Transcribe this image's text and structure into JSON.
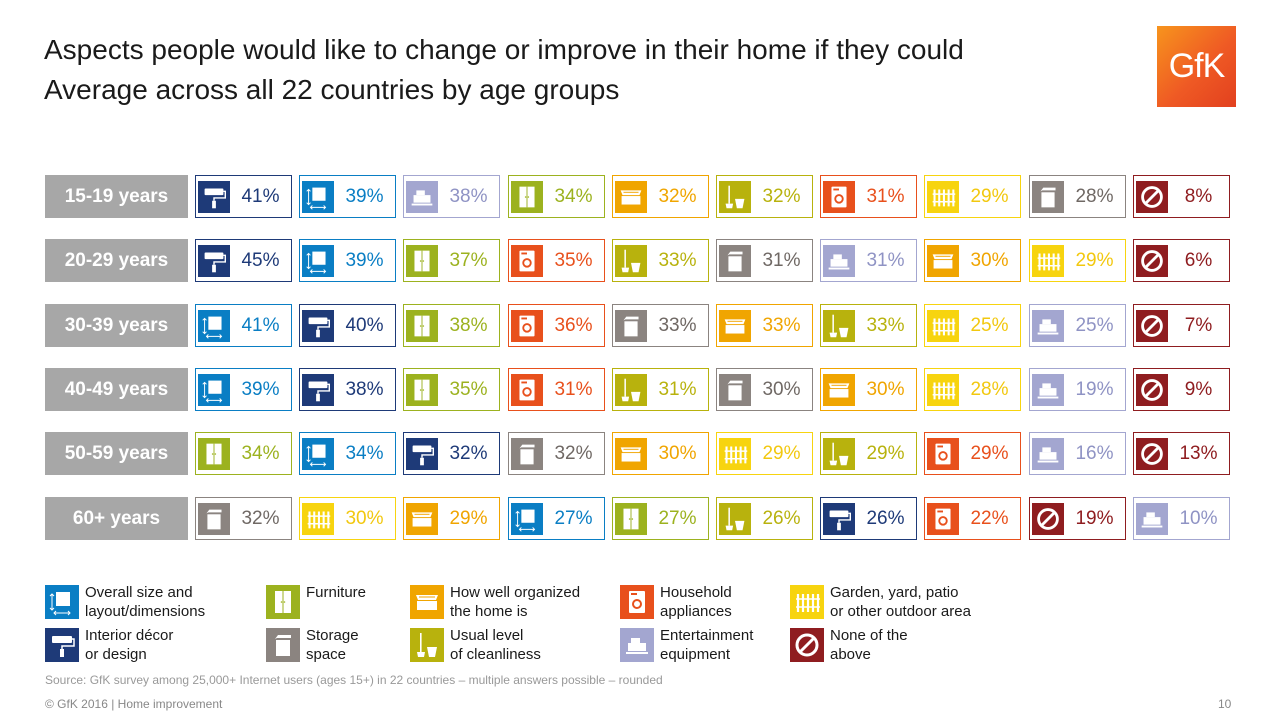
{
  "title_line1": "Aspects people would like to change or improve in their home if they could",
  "title_line2": "Average across all 22 countries by age groups",
  "logo_text": "GfK",
  "categories": {
    "size": {
      "color": "#0a7ec4",
      "icon": "layout-icon"
    },
    "decor": {
      "color": "#1e3a78",
      "icon": "paint-roller-icon"
    },
    "furniture": {
      "color": "#9cb21f",
      "icon": "wardrobe-icon"
    },
    "storage": {
      "color": "#8b8480",
      "icon": "storage-box-icon"
    },
    "organized": {
      "color": "#f0a500",
      "icon": "drawer-icon"
    },
    "cleanliness": {
      "color": "#b8b20d",
      "icon": "broom-bucket-icon"
    },
    "appliances": {
      "color": "#e8501c",
      "icon": "washing-machine-icon"
    },
    "entertainment": {
      "color": "#a3a6d0",
      "icon": "tv-equipment-icon"
    },
    "garden": {
      "color": "#f7d40f",
      "icon": "fence-icon"
    },
    "none": {
      "color": "#8f1d20",
      "icon": "prohibited-icon"
    }
  },
  "chart_data": {
    "type": "table",
    "title": "Aspects people would like to change or improve in their home if they could",
    "subtitle": "Average across all 22 countries by age groups",
    "rows": [
      {
        "age": "15-19 years",
        "cells": [
          {
            "cat": "decor",
            "value": "41%"
          },
          {
            "cat": "size",
            "value": "39%"
          },
          {
            "cat": "entertainment",
            "value": "38%"
          },
          {
            "cat": "furniture",
            "value": "34%"
          },
          {
            "cat": "organized",
            "value": "32%"
          },
          {
            "cat": "cleanliness",
            "value": "32%"
          },
          {
            "cat": "appliances",
            "value": "31%"
          },
          {
            "cat": "garden",
            "value": "29%"
          },
          {
            "cat": "storage",
            "value": "28%"
          },
          {
            "cat": "none",
            "value": "8%"
          }
        ]
      },
      {
        "age": "20-29 years",
        "cells": [
          {
            "cat": "decor",
            "value": "45%"
          },
          {
            "cat": "size",
            "value": "39%"
          },
          {
            "cat": "furniture",
            "value": "37%"
          },
          {
            "cat": "appliances",
            "value": "35%"
          },
          {
            "cat": "cleanliness",
            "value": "33%"
          },
          {
            "cat": "storage",
            "value": "31%"
          },
          {
            "cat": "entertainment",
            "value": "31%"
          },
          {
            "cat": "organized",
            "value": "30%"
          },
          {
            "cat": "garden",
            "value": "29%"
          },
          {
            "cat": "none",
            "value": "6%"
          }
        ]
      },
      {
        "age": "30-39 years",
        "cells": [
          {
            "cat": "size",
            "value": "41%"
          },
          {
            "cat": "decor",
            "value": "40%"
          },
          {
            "cat": "furniture",
            "value": "38%"
          },
          {
            "cat": "appliances",
            "value": "36%"
          },
          {
            "cat": "storage",
            "value": "33%"
          },
          {
            "cat": "organized",
            "value": "33%"
          },
          {
            "cat": "cleanliness",
            "value": "33%"
          },
          {
            "cat": "garden",
            "value": "25%"
          },
          {
            "cat": "entertainment",
            "value": "25%"
          },
          {
            "cat": "none",
            "value": "7%"
          }
        ]
      },
      {
        "age": "40-49 years",
        "cells": [
          {
            "cat": "size",
            "value": "39%"
          },
          {
            "cat": "decor",
            "value": "38%"
          },
          {
            "cat": "furniture",
            "value": "35%"
          },
          {
            "cat": "appliances",
            "value": "31%"
          },
          {
            "cat": "cleanliness",
            "value": "31%"
          },
          {
            "cat": "storage",
            "value": "30%"
          },
          {
            "cat": "organized",
            "value": "30%"
          },
          {
            "cat": "garden",
            "value": "28%"
          },
          {
            "cat": "entertainment",
            "value": "19%"
          },
          {
            "cat": "none",
            "value": "9%"
          }
        ]
      },
      {
        "age": "50-59 years",
        "cells": [
          {
            "cat": "furniture",
            "value": "34%"
          },
          {
            "cat": "size",
            "value": "34%"
          },
          {
            "cat": "decor",
            "value": "32%"
          },
          {
            "cat": "storage",
            "value": "32%"
          },
          {
            "cat": "organized",
            "value": "30%"
          },
          {
            "cat": "garden",
            "value": "29%"
          },
          {
            "cat": "cleanliness",
            "value": "29%"
          },
          {
            "cat": "appliances",
            "value": "29%"
          },
          {
            "cat": "entertainment",
            "value": "16%"
          },
          {
            "cat": "none",
            "value": "13%"
          }
        ]
      },
      {
        "age": "60+ years",
        "cells": [
          {
            "cat": "storage",
            "value": "32%"
          },
          {
            "cat": "garden",
            "value": "30%"
          },
          {
            "cat": "organized",
            "value": "29%"
          },
          {
            "cat": "size",
            "value": "27%"
          },
          {
            "cat": "furniture",
            "value": "27%"
          },
          {
            "cat": "cleanliness",
            "value": "26%"
          },
          {
            "cat": "decor",
            "value": "26%"
          },
          {
            "cat": "appliances",
            "value": "22%"
          },
          {
            "cat": "none",
            "value": "19%"
          },
          {
            "cat": "entertainment",
            "value": "10%"
          }
        ]
      }
    ]
  },
  "legend": [
    {
      "cat": "size",
      "line1": "Overall size and",
      "line2": "layout/dimensions"
    },
    {
      "cat": "furniture",
      "line1": "Furniture",
      "line2": ""
    },
    {
      "cat": "organized",
      "line1": "How well organized",
      "line2": "the home is"
    },
    {
      "cat": "appliances",
      "line1": "Household",
      "line2": "appliances"
    },
    {
      "cat": "garden",
      "line1": "Garden, yard, patio",
      "line2": "or other outdoor area"
    },
    {
      "cat": "decor",
      "line1": "Interior décor",
      "line2": "or design"
    },
    {
      "cat": "storage",
      "line1": "Storage",
      "line2": "space"
    },
    {
      "cat": "cleanliness",
      "line1": "Usual level",
      "line2": "of cleanliness"
    },
    {
      "cat": "entertainment",
      "line1": "Entertainment",
      "line2": "equipment"
    },
    {
      "cat": "none",
      "line1": "None of the",
      "line2": "above"
    }
  ],
  "source": "Source: GfK survey among 25,000+ Internet users (ages 15+) in 22 countries – multiple answers possible – rounded",
  "footer": "© GfK 2016 | Home improvement",
  "page_number": "10"
}
